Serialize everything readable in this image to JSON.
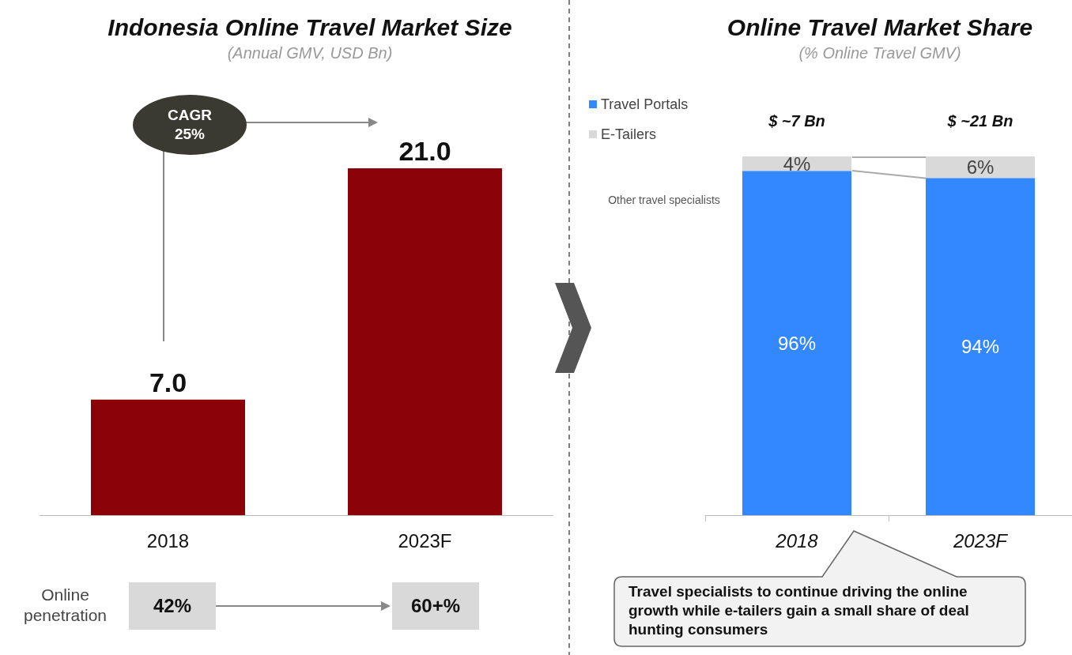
{
  "chart_data": [
    {
      "type": "bar",
      "title": "Indonesia Online Travel Market Size",
      "subtitle": "(Annual GMV, USD Bn)",
      "categories": [
        "2018",
        "2023F"
      ],
      "values": [
        7,
        21
      ],
      "value_labels": [
        "7.0",
        "21.0"
      ],
      "color": "#8b0309",
      "legend": false,
      "annotations": [
        "CAGR 25%",
        "Online penetration",
        "42%",
        "60+%"
      ]
    },
    {
      "type": "bar",
      "title": "Online Travel Market Share",
      "subtitle": "(% Online Travel GMV)",
      "categories": [
        "2018",
        "2023F"
      ],
      "stacked": true,
      "legend": "top left",
      "series": [
        {
          "name": "Travel Portals",
          "color": "#3388ff",
          "values": [
            96,
            94
          ],
          "value_labels": [
            "96%",
            "94%"
          ]
        },
        {
          "name": "E-Tailers",
          "color": "#d9d9d9",
          "values": [
            4,
            6
          ],
          "value_labels": [
            "4%",
            "6%"
          ]
        }
      ],
      "annotations": [
        {
          "text": "$ ~7 Bn",
          "x": "2018",
          "y": 100
        },
        {
          "text": "$ ~21 Bn",
          "x": "2023F",
          "y": 100
        },
        "Other travel specialists",
        "Travel specialists to continue driving the online growth while e-tailers gain a small share of deal hunting consumers"
      ]
    }
  ]
}
